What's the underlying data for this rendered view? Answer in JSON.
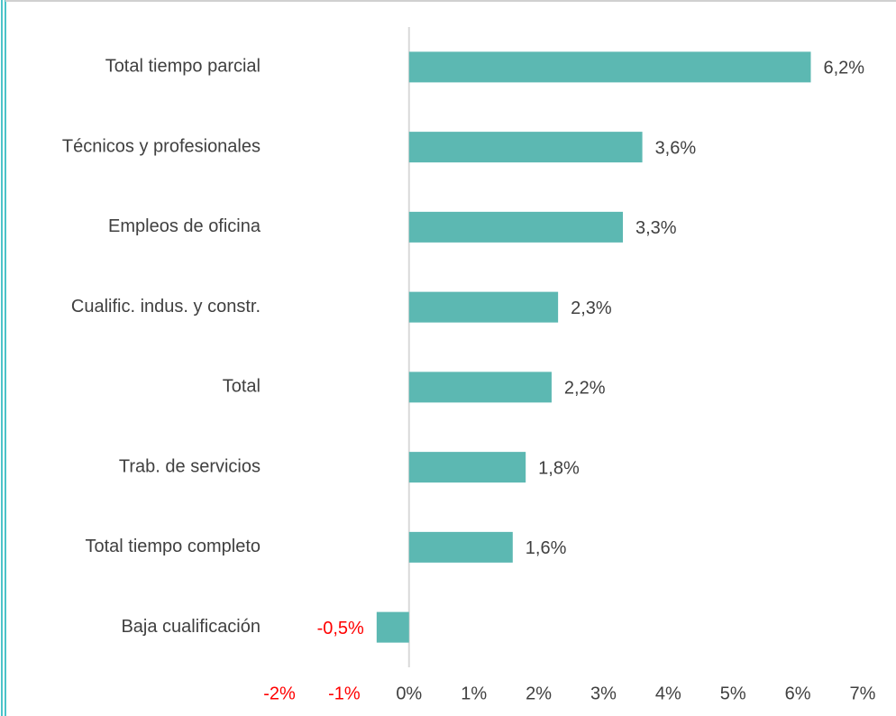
{
  "chart_data": {
    "type": "hbar",
    "categories": [
      "Total tiempo parcial",
      "Técnicos y profesionales",
      "Empleos de oficina",
      "Cualific. indus. y constr.",
      "Total",
      "Trab. de servicios",
      "Total tiempo completo",
      "Baja cualificación"
    ],
    "values": [
      6.2,
      3.6,
      3.3,
      2.3,
      2.2,
      1.8,
      1.6,
      -0.5
    ],
    "value_labels": [
      "6,2%",
      "3,6%",
      "3,3%",
      "2,3%",
      "2,2%",
      "1,8%",
      "1,6%",
      "-0,5%"
    ],
    "color": "#5cb8b2",
    "negative_label_color": "#ff0000",
    "xlim": [
      -2,
      7
    ],
    "xticks": [
      {
        "value": -2,
        "label": "-2%"
      },
      {
        "value": -1,
        "label": "-1%"
      },
      {
        "value": 0,
        "label": "0%"
      },
      {
        "value": 1,
        "label": "1%"
      },
      {
        "value": 2,
        "label": "2%"
      },
      {
        "value": 3,
        "label": "3%"
      },
      {
        "value": 4,
        "label": "4%"
      },
      {
        "value": 5,
        "label": "5%"
      },
      {
        "value": 6,
        "label": "6%"
      },
      {
        "value": 7,
        "label": "7%"
      }
    ]
  }
}
